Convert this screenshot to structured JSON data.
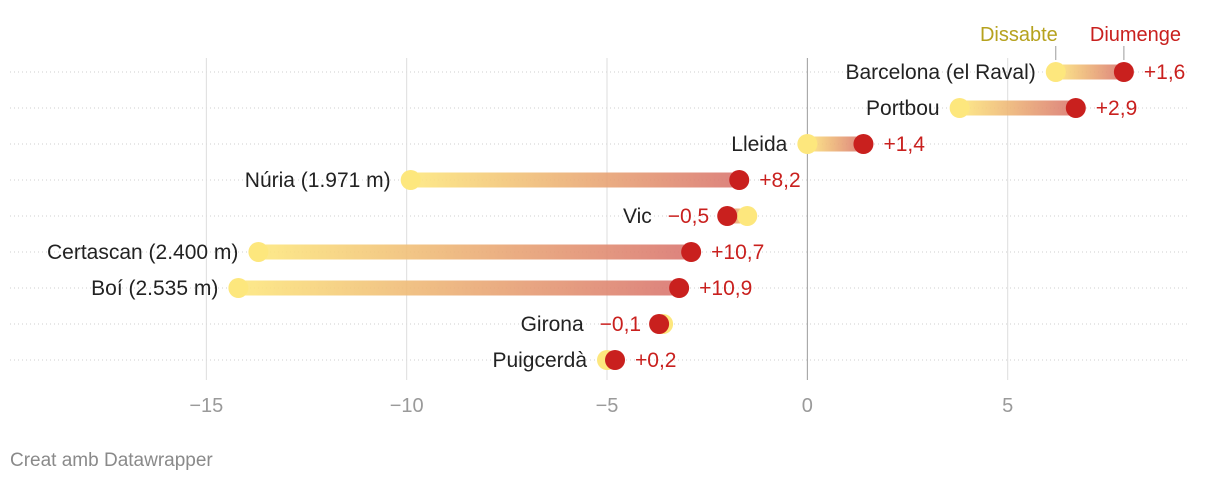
{
  "chart_data": {
    "type": "dumbbell",
    "legend": {
      "start_label": "Dissabte",
      "end_label": "Diumenge",
      "start_color": "#fde77d",
      "end_color": "#c9201e",
      "start_text_color": "#b6a21e"
    },
    "xlim": [
      -19.9,
      9.5
    ],
    "x_ticks": [
      {
        "value": -15,
        "label": "−15"
      },
      {
        "value": -10,
        "label": "−10"
      },
      {
        "value": -5,
        "label": "−5"
      },
      {
        "value": 0,
        "label": "0"
      },
      {
        "value": 5,
        "label": "5"
      }
    ],
    "rows": [
      {
        "label": "Barcelona (el Raval)",
        "start": 6.2,
        "end": 7.9,
        "diff": "+1,6"
      },
      {
        "label": "Portbou",
        "start": 3.8,
        "end": 6.7,
        "diff": "+2,9"
      },
      {
        "label": "Lleida",
        "start": 0.0,
        "end": 1.4,
        "diff": "+1,4"
      },
      {
        "label": "Núria (1.971 m)",
        "start": -9.9,
        "end": -1.7,
        "diff": "+8,2"
      },
      {
        "label": "Vic",
        "start": -1.5,
        "end": -2.0,
        "diff": "−0,5"
      },
      {
        "label": "Certascan (2.400 m)",
        "start": -13.7,
        "end": -2.9,
        "diff": "+10,7"
      },
      {
        "label": "Boí (2.535 m)",
        "start": -14.2,
        "end": -3.2,
        "diff": "+10,9"
      },
      {
        "label": "Girona",
        "start": -3.6,
        "end": -3.7,
        "diff": "−0,1"
      },
      {
        "label": "Puigcerdà",
        "start": -5.0,
        "end": -4.8,
        "diff": "+0,2"
      }
    ]
  },
  "footer": {
    "credit": "Creat amb Datawrapper"
  }
}
